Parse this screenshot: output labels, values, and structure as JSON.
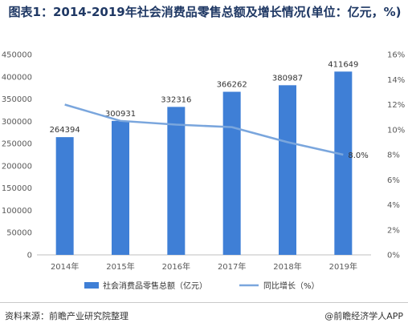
{
  "chart_data": {
    "type": "bar",
    "title": "图表1：2014-2019年社会消费品零售总额及增长情况(单位：亿元，%)",
    "categories": [
      "2014年",
      "2015年",
      "2016年",
      "2017年",
      "2018年",
      "2019年"
    ],
    "series": [
      {
        "name": "社会消费品零售总额（亿元）",
        "type": "bar",
        "axis": "left",
        "values": [
          264394,
          300931,
          332316,
          366262,
          380987,
          411649
        ],
        "color": "#3f7fd6"
      },
      {
        "name": "同比增长（%）",
        "type": "line",
        "axis": "right",
        "values": [
          12.0,
          10.7,
          10.4,
          10.2,
          9.0,
          8.0
        ],
        "color": "#7aa6dd"
      }
    ],
    "line_end_label": "8.0%",
    "y_left": {
      "ylim": [
        0,
        450000
      ],
      "ticks": [
        "0",
        "50000",
        "100000",
        "150000",
        "200000",
        "250000",
        "300000",
        "350000",
        "400000",
        "450000"
      ]
    },
    "y_right": {
      "ylim": [
        0,
        16
      ],
      "ticks": [
        "0%",
        "2%",
        "4%",
        "6%",
        "8%",
        "10%",
        "12%",
        "14%",
        "16%"
      ]
    },
    "grid": false,
    "legend": "bottom"
  },
  "footer": {
    "source": "资料来源：前瞻产业研究院整理",
    "brand": "@前瞻经济学人APP"
  }
}
